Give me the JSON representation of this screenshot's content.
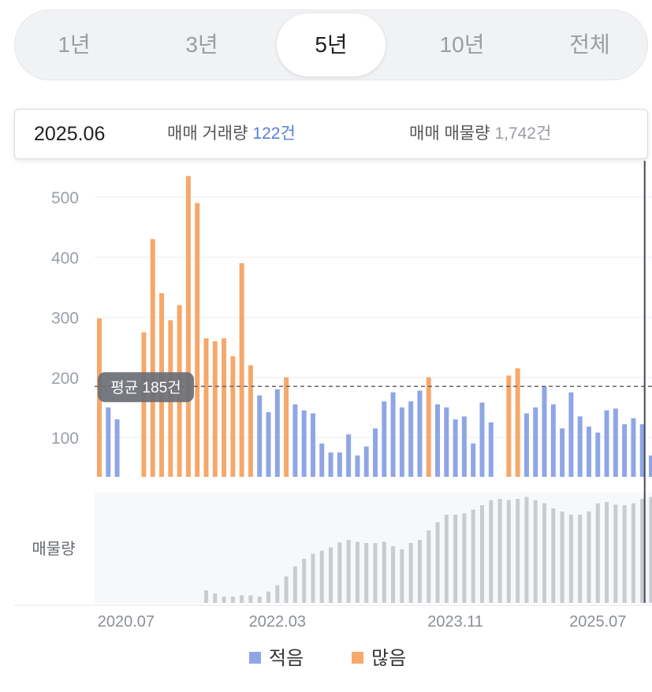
{
  "tabs": [
    {
      "label": "1년",
      "active": false
    },
    {
      "label": "3년",
      "active": false
    },
    {
      "label": "5년",
      "active": true
    },
    {
      "label": "10년",
      "active": false
    },
    {
      "label": "전체",
      "active": false
    }
  ],
  "info": {
    "date": "2025.06",
    "deal_label": "매매 거래량",
    "deal_value": "122건",
    "listing_label": "매매 매물량",
    "listing_value": "1,742건"
  },
  "average_label": "평균 185건",
  "listing_axis_label": "매물량",
  "legend": [
    {
      "label": "적음",
      "color": "#8fa6e6"
    },
    {
      "label": "많음",
      "color": "#f6a86a"
    }
  ],
  "chart_data": {
    "type": "bar",
    "title": "",
    "ylabel": "",
    "y_ticks": [
      100,
      200,
      300,
      400,
      500
    ],
    "ylim": [
      45,
      545
    ],
    "average": 185,
    "x_tick_labels": [
      {
        "index": 3,
        "label": "2020.07"
      },
      {
        "index": 20,
        "label": "2022.03"
      },
      {
        "index": 40,
        "label": "2023.11"
      },
      {
        "index": 56,
        "label": "2025.07"
      }
    ],
    "colors": {
      "low": "#8fa6e6",
      "high": "#f6a86a",
      "listing": "#c9cbd0",
      "average_line": "#666666",
      "cursor": "#444a57"
    },
    "values": [
      298,
      150,
      130,
      0,
      0,
      275,
      430,
      340,
      295,
      320,
      535,
      490,
      265,
      260,
      265,
      235,
      390,
      220,
      170,
      142,
      180,
      200,
      155,
      145,
      140,
      90,
      75,
      75,
      105,
      70,
      85,
      115,
      160,
      175,
      150,
      160,
      178,
      200,
      155,
      150,
      130,
      135,
      90,
      158,
      125,
      0,
      203,
      215,
      140,
      150,
      185,
      155,
      115,
      175,
      135,
      118,
      108,
      145,
      148,
      122,
      132,
      122,
      70
    ],
    "listing": [
      0,
      0,
      0,
      0,
      0,
      0,
      0,
      0,
      0,
      0,
      0,
      0,
      20,
      15,
      10,
      10,
      12,
      12,
      10,
      18,
      28,
      42,
      58,
      70,
      78,
      83,
      88,
      96,
      100,
      97,
      95,
      95,
      97,
      90,
      85,
      95,
      100,
      115,
      128,
      140,
      140,
      142,
      148,
      155,
      163,
      165,
      163,
      165,
      168,
      163,
      158,
      150,
      145,
      140,
      140,
      145,
      158,
      160,
      156,
      155,
      158,
      165,
      168
    ]
  }
}
